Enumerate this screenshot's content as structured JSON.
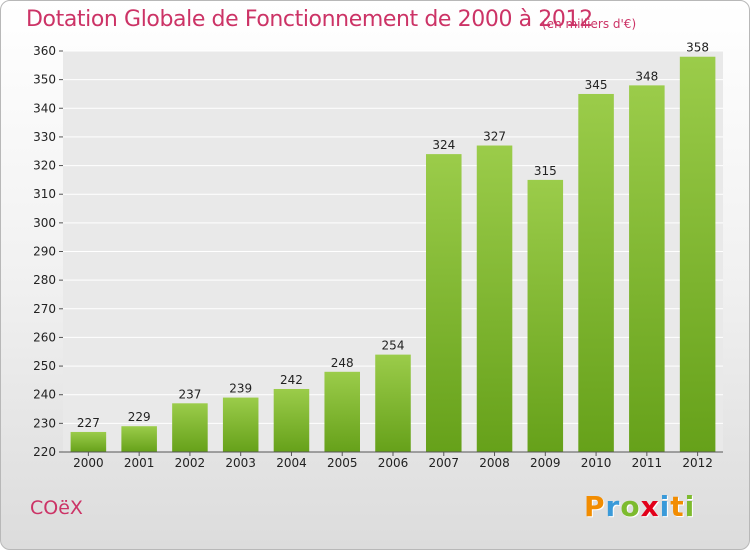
{
  "header": {
    "title": "Dotation Globale de Fonctionnement de 2000 à 2012",
    "subtitle": "(en milliers d'€)"
  },
  "footer": {
    "commune": "COëX",
    "logo_text": "Proxiti",
    "logo_colors": [
      "#f28c00",
      "#3a9ad9",
      "#7dbb2e",
      "#e2001a",
      "#3a9ad9",
      "#f28c00",
      "#7dbb2e"
    ]
  },
  "colors": {
    "accent": "#cc3366",
    "bar_top": "#9bcc4a",
    "bar_bottom": "#66a11a",
    "grid": "#ffffff",
    "axis_text": "#222222"
  },
  "chart_data": {
    "type": "bar",
    "title": "Dotation Globale de Fonctionnement de 2000 à 2012",
    "subtitle": "(en milliers d'€)",
    "xlabel": "",
    "ylabel": "",
    "categories": [
      "2000",
      "2001",
      "2002",
      "2003",
      "2004",
      "2005",
      "2006",
      "2007",
      "2008",
      "2009",
      "2010",
      "2011",
      "2012"
    ],
    "values": [
      227,
      229,
      237,
      239,
      242,
      248,
      254,
      324,
      327,
      315,
      345,
      348,
      358
    ],
    "ylim": [
      220,
      360
    ],
    "yticks": [
      220,
      230,
      240,
      250,
      260,
      270,
      280,
      290,
      300,
      310,
      320,
      330,
      340,
      350,
      360
    ],
    "grid": true,
    "data_labels": true
  }
}
